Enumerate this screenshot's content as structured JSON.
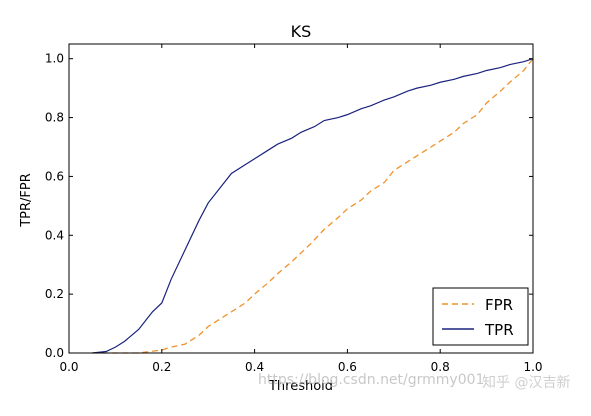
{
  "chart_data": {
    "type": "line",
    "title": "KS",
    "xlabel": "Threshold",
    "ylabel": "TPR/FPR",
    "xlim": [
      0.0,
      1.0
    ],
    "ylim": [
      0.0,
      1.05
    ],
    "xticks": [
      "0.0",
      "0.2",
      "0.4",
      "0.6",
      "0.8",
      "1.0"
    ],
    "xtick_values": [
      0.0,
      0.2,
      0.4,
      0.6,
      0.8,
      1.0
    ],
    "yticks": [
      "0.0",
      "0.2",
      "0.4",
      "0.6",
      "0.8",
      "1.0"
    ],
    "ytick_values": [
      0.0,
      0.2,
      0.4,
      0.6,
      0.8,
      1.0
    ],
    "grid": false,
    "legend_position": "bottom-right",
    "series": [
      {
        "name": "FPR",
        "color": "#f0922b",
        "style": "dashed",
        "x": [
          0.05,
          0.1,
          0.15,
          0.2,
          0.22,
          0.25,
          0.28,
          0.3,
          0.33,
          0.35,
          0.38,
          0.4,
          0.43,
          0.45,
          0.48,
          0.5,
          0.52,
          0.55,
          0.58,
          0.6,
          0.63,
          0.65,
          0.68,
          0.7,
          0.73,
          0.75,
          0.78,
          0.8,
          0.83,
          0.85,
          0.88,
          0.9,
          0.93,
          0.95,
          0.98,
          1.0
        ],
        "y": [
          0.0,
          0.0,
          0.0,
          0.01,
          0.02,
          0.03,
          0.06,
          0.09,
          0.12,
          0.14,
          0.17,
          0.2,
          0.24,
          0.27,
          0.31,
          0.34,
          0.37,
          0.42,
          0.46,
          0.49,
          0.52,
          0.55,
          0.58,
          0.62,
          0.65,
          0.67,
          0.7,
          0.72,
          0.75,
          0.78,
          0.81,
          0.85,
          0.89,
          0.92,
          0.96,
          1.0
        ]
      },
      {
        "name": "TPR",
        "color": "#1a237e",
        "style": "solid",
        "x": [
          0.05,
          0.08,
          0.1,
          0.12,
          0.15,
          0.18,
          0.2,
          0.22,
          0.25,
          0.28,
          0.3,
          0.33,
          0.35,
          0.38,
          0.4,
          0.43,
          0.45,
          0.48,
          0.5,
          0.53,
          0.55,
          0.58,
          0.6,
          0.63,
          0.65,
          0.68,
          0.7,
          0.73,
          0.75,
          0.78,
          0.8,
          0.83,
          0.85,
          0.88,
          0.9,
          0.93,
          0.95,
          0.98,
          1.0
        ],
        "y": [
          0.0,
          0.005,
          0.02,
          0.04,
          0.08,
          0.14,
          0.17,
          0.25,
          0.35,
          0.45,
          0.51,
          0.57,
          0.61,
          0.64,
          0.66,
          0.69,
          0.71,
          0.73,
          0.75,
          0.77,
          0.79,
          0.8,
          0.81,
          0.83,
          0.84,
          0.86,
          0.87,
          0.89,
          0.9,
          0.91,
          0.92,
          0.93,
          0.94,
          0.95,
          0.96,
          0.97,
          0.98,
          0.99,
          1.0
        ]
      }
    ]
  },
  "watermark": {
    "url": "https://blog.csdn.net/grmmy001",
    "brand": "知乎 @汉吉新"
  }
}
